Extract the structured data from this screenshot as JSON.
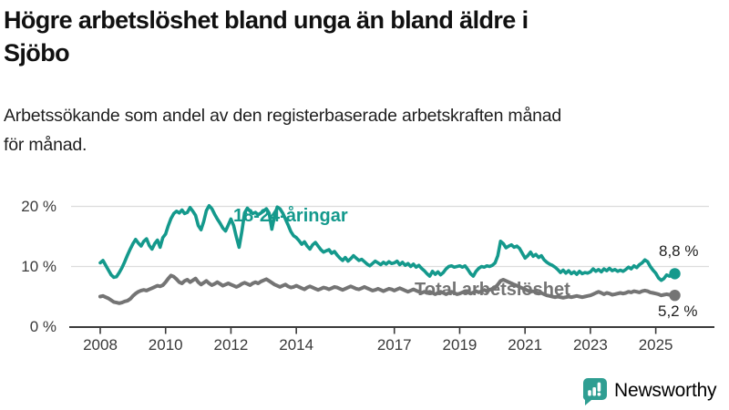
{
  "header": {
    "title_line1": "Högre arbetslöshet bland unga än bland äldre i",
    "title_line2": "Sjöbo",
    "subtitle_line1": "Arbetssökande som andel av den registerbaserade arbetskraften månad",
    "subtitle_line2": "för månad."
  },
  "colors": {
    "youth_line": "#14998c",
    "total_line": "#747474",
    "gridline": "#dcdcdc",
    "axis": "#3a3a3a",
    "logo_teal": "#2f9e92",
    "value_label": "#1f1f1f"
  },
  "footer": {
    "brand": "Newsworthy",
    "logo_icon": "speech-bubble-bar-chart-icon"
  },
  "chart_data": {
    "type": "line",
    "title": "Högre arbetslöshet bland unga än bland äldre i Sjöbo",
    "subtitle": "Arbetssökande som andel av den registerbaserade arbetskraften månad för månad.",
    "unit": "%",
    "frequency": "monthly",
    "x_start": "2008-01",
    "x_end": "2025-08",
    "ylim": [
      0,
      22
    ],
    "grid": "horizontal",
    "y_ticks": [
      {
        "value": 0,
        "label": "0 %"
      },
      {
        "value": 10,
        "label": "10 %"
      },
      {
        "value": 20,
        "label": "20 %"
      }
    ],
    "x_ticks": [
      {
        "year": 2008,
        "label": "2008"
      },
      {
        "year": 2010,
        "label": "2010"
      },
      {
        "year": 2012,
        "label": "2012"
      },
      {
        "year": 2014,
        "label": "2014"
      },
      {
        "year": 2017,
        "label": "2017"
      },
      {
        "year": 2019,
        "label": "2019"
      },
      {
        "year": 2021,
        "label": "2021"
      },
      {
        "year": 2023,
        "label": "2023"
      },
      {
        "year": 2025,
        "label": "2025"
      }
    ],
    "series": [
      {
        "name": "18-24-åringar",
        "end_value_label": "8,8 %",
        "values": [
          10.6,
          11.0,
          10.2,
          9.4,
          8.6,
          8.2,
          8.3,
          9.0,
          9.8,
          10.8,
          11.9,
          12.9,
          13.8,
          14.5,
          13.9,
          13.4,
          14.2,
          14.6,
          13.5,
          12.9,
          13.8,
          14.4,
          13.2,
          14.8,
          15.4,
          16.8,
          18.0,
          18.8,
          19.2,
          18.9,
          19.4,
          18.8,
          19.0,
          19.8,
          19.2,
          18.5,
          16.8,
          16.1,
          17.5,
          19.3,
          20.1,
          19.6,
          18.7,
          17.9,
          17.2,
          16.4,
          15.9,
          16.9,
          17.9,
          16.8,
          14.9,
          13.2,
          15.8,
          18.9,
          19.7,
          19.2,
          18.8,
          19.0,
          18.6,
          18.9,
          19.2,
          19.6,
          18.9,
          16.2,
          18.4,
          19.9,
          19.6,
          18.9,
          17.9,
          16.9,
          15.8,
          15.1,
          14.8,
          14.3,
          13.7,
          14.1,
          13.4,
          12.9,
          13.6,
          14.0,
          13.4,
          12.8,
          12.4,
          12.6,
          12.8,
          12.2,
          12.5,
          11.9,
          11.4,
          11.0,
          11.5,
          10.9,
          11.3,
          11.8,
          11.4,
          11.0,
          11.2,
          10.8,
          10.4,
          10.1,
          10.5,
          10.9,
          10.6,
          10.3,
          10.7,
          10.4,
          10.8,
          10.5,
          10.6,
          10.9,
          10.3,
          10.7,
          10.2,
          10.5,
          10.0,
          10.4,
          9.9,
          10.2,
          9.7,
          9.3,
          8.8,
          8.4,
          9.2,
          8.7,
          9.1,
          8.6,
          9.0,
          9.6,
          10.0,
          10.1,
          9.9,
          10.0,
          10.1,
          9.9,
          10.1,
          9.5,
          8.8,
          8.4,
          9.2,
          9.7,
          10.0,
          9.9,
          10.1,
          10.0,
          10.2,
          10.6,
          11.8,
          14.2,
          13.8,
          13.1,
          13.4,
          13.6,
          13.2,
          13.4,
          13.0,
          12.2,
          11.4,
          11.8,
          12.4,
          11.7,
          12.0,
          11.5,
          11.8,
          11.1,
          10.7,
          10.4,
          10.2,
          9.9,
          9.5,
          9.0,
          9.4,
          8.9,
          9.3,
          8.8,
          9.1,
          8.7,
          9.2,
          8.8,
          9.0,
          8.9,
          9.1,
          9.6,
          9.2,
          9.5,
          9.1,
          9.6,
          9.3,
          9.7,
          9.3,
          9.5,
          9.2,
          9.4,
          9.2,
          9.5,
          9.9,
          9.6,
          10.1,
          9.8,
          10.3,
          10.6,
          11.1,
          10.8,
          10.0,
          9.4,
          8.9,
          8.1,
          7.7,
          8.0,
          8.6,
          8.4,
          8.5,
          8.8
        ]
      },
      {
        "name": "Total arbetslöshet",
        "end_value_label": "5,2 %",
        "values": [
          5.0,
          5.1,
          4.9,
          4.7,
          4.4,
          4.1,
          4.0,
          3.9,
          4.0,
          4.2,
          4.3,
          4.6,
          5.1,
          5.5,
          5.8,
          6.0,
          6.1,
          6.0,
          6.2,
          6.4,
          6.6,
          6.8,
          6.7,
          6.9,
          7.4,
          8.0,
          8.5,
          8.3,
          7.9,
          7.4,
          7.2,
          7.6,
          7.8,
          7.4,
          7.7,
          8.0,
          7.4,
          7.0,
          7.3,
          7.6,
          7.2,
          6.9,
          7.1,
          7.4,
          7.1,
          6.8,
          7.0,
          7.2,
          7.0,
          6.8,
          6.6,
          6.8,
          7.1,
          7.3,
          7.1,
          6.9,
          7.2,
          7.4,
          7.2,
          7.5,
          7.7,
          7.9,
          7.6,
          7.3,
          7.0,
          6.8,
          6.6,
          6.8,
          7.0,
          6.7,
          6.5,
          6.6,
          6.8,
          6.6,
          6.4,
          6.2,
          6.5,
          6.7,
          6.5,
          6.3,
          6.1,
          6.3,
          6.5,
          6.4,
          6.2,
          6.4,
          6.6,
          6.5,
          6.3,
          6.1,
          6.3,
          6.5,
          6.7,
          6.5,
          6.3,
          6.2,
          6.4,
          6.6,
          6.4,
          6.2,
          6.0,
          6.1,
          6.3,
          6.1,
          5.9,
          6.1,
          6.3,
          6.2,
          6.0,
          6.2,
          6.4,
          6.2,
          6.0,
          5.8,
          6.0,
          6.2,
          6.0,
          5.8,
          5.6,
          5.8,
          5.6,
          5.8,
          5.6,
          5.4,
          5.6,
          5.8,
          5.6,
          5.4,
          5.6,
          5.8,
          5.6,
          5.4,
          5.5,
          5.7,
          5.9,
          5.7,
          5.5,
          5.7,
          5.9,
          5.7,
          5.9,
          6.1,
          5.9,
          6.1,
          6.3,
          6.5,
          7.0,
          7.6,
          7.8,
          7.6,
          7.4,
          7.2,
          7.0,
          6.8,
          6.6,
          6.4,
          6.2,
          6.0,
          5.8,
          5.9,
          5.7,
          5.5,
          5.6,
          5.4,
          5.2,
          5.1,
          5.0,
          4.9,
          5.0,
          4.9,
          4.8,
          4.9,
          5.0,
          4.9,
          5.0,
          5.1,
          5.0,
          4.9,
          5.0,
          5.1,
          5.2,
          5.4,
          5.6,
          5.8,
          5.6,
          5.4,
          5.6,
          5.5,
          5.3,
          5.4,
          5.5,
          5.6,
          5.5,
          5.6,
          5.8,
          5.7,
          5.9,
          5.8,
          5.7,
          5.9,
          6.0,
          5.9,
          5.7,
          5.6,
          5.5,
          5.4,
          5.2,
          5.3,
          5.4,
          5.3,
          5.2,
          5.2
        ]
      }
    ],
    "legend_position": "inline-labels"
  }
}
